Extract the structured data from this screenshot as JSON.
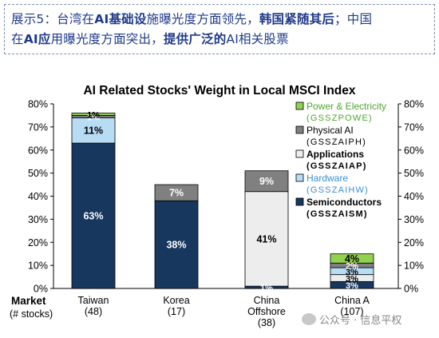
{
  "header": {
    "line1_prefix": "展示5：台湾在",
    "line1_bold": "AI基础设",
    "line1_mid": "施曝光度方面领先，",
    "line1_bold2": "韩国紧随其后",
    "line1_suffix": "；中国",
    "line2_prefix": "在",
    "line2_bold": "AI应",
    "line2_mid": "用曝光度方面突出，",
    "line2_bold2": "提供广泛的",
    "line2_suffix": "AI相关股票"
  },
  "watermark": "公众号 · 信息平权",
  "chart_data": {
    "type": "bar",
    "stacked": true,
    "title": "AI Related Stocks' Weight in Local MSCI Index",
    "xlabel": "Market",
    "xlabel_sub": "(# stocks)",
    "ylim": [
      0,
      80
    ],
    "y_ticks": [
      "0%",
      "10%",
      "20%",
      "30%",
      "40%",
      "50%",
      "60%",
      "70%",
      "80%"
    ],
    "categories": [
      {
        "name": "Taiwan",
        "count": "(48)"
      },
      {
        "name": "Korea",
        "count": "(17)"
      },
      {
        "name": "China Offshore",
        "count": "(38)"
      },
      {
        "name": "China A",
        "count": "(107)"
      }
    ],
    "series": [
      {
        "name": "Semiconductors",
        "code": "(GSSZAISM)",
        "color": "#17375e",
        "label_color": "#ffffff",
        "values": [
          63,
          38,
          1,
          3
        ]
      },
      {
        "name": "Applications",
        "code": "(GSSZAIAP)",
        "color": "#ededed",
        "label_color": "#000000",
        "values": [
          0,
          0,
          41,
          3
        ]
      },
      {
        "name": "Hardware",
        "code": "(GSSZAIHW)",
        "color": "#b7dcf4",
        "label_color": "#000000",
        "values": [
          11,
          0,
          0,
          3
        ]
      },
      {
        "name": "Physical AI",
        "code": "(GSSZAIPH)",
        "color": "#808080",
        "label_color": "#ffffff",
        "values": [
          1,
          7,
          9,
          2
        ]
      },
      {
        "name": "Power & Electricity",
        "code": "(GSSZPOWE)",
        "color": "#92d050",
        "label_color": "#000000",
        "values": [
          1,
          0,
          0,
          4
        ]
      }
    ],
    "bar_labels": [
      {
        "category": 0,
        "series": 0,
        "text": "63%"
      },
      {
        "category": 0,
        "series": 2,
        "text": "11%"
      },
      {
        "category": 0,
        "series": 3,
        "text": "1%"
      },
      {
        "category": 0,
        "series": 4,
        "text": "1%"
      },
      {
        "category": 1,
        "series": 0,
        "text": "38%"
      },
      {
        "category": 1,
        "series": 3,
        "text": "7%"
      },
      {
        "category": 2,
        "series": 0,
        "text": "1%"
      },
      {
        "category": 2,
        "series": 1,
        "text": "41%"
      },
      {
        "category": 2,
        "series": 3,
        "text": "9%"
      },
      {
        "category": 3,
        "series": 0,
        "text": "3%"
      },
      {
        "category": 3,
        "series": 1,
        "text": "3%"
      },
      {
        "category": 3,
        "series": 2,
        "text": "3%"
      },
      {
        "category": 3,
        "series": 3,
        "text": "2%"
      },
      {
        "category": 3,
        "series": 4,
        "text": "4%"
      }
    ],
    "legend_position": "right",
    "legend_order": [
      4,
      3,
      1,
      2,
      0
    ],
    "legend_title_colors": [
      "#4ea72e",
      "#000000",
      "#000000",
      "#3b8fd6",
      "#000000"
    ]
  }
}
